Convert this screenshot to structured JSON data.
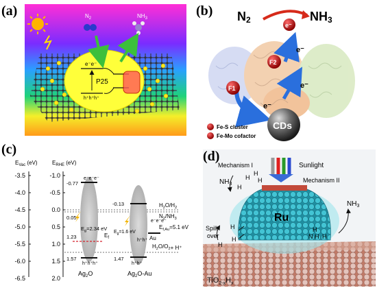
{
  "panel_labels": {
    "a": "(a)",
    "b": "(b)",
    "c": "(c)",
    "d": "(d)"
  },
  "panel_a": {
    "molecule_n2": "N",
    "molecule_n2_sub": "2",
    "molecule_nh3": "NH",
    "molecule_nh3_sub": "3",
    "catalyst": "P25",
    "vb_label": "h⁺h⁺h⁺",
    "cb_label": "e⁻e⁻"
  },
  "panel_b": {
    "reactant": "N",
    "reactant_sub": "2",
    "product": "NH",
    "product_sub": "3",
    "electron": "e⁻",
    "f1": "F1",
    "f2": "F2",
    "cds": "CDs",
    "legend": [
      "Fe-S cluster",
      "Fe-Mo cofactor"
    ]
  },
  "panel_c": {
    "axis_vac_label": "E",
    "axis_vac_sub": "Vac",
    "axis_vac_unit": " (eV)",
    "axis_rhe_label": "E",
    "axis_rhe_sub": "RHE",
    "axis_rhe_unit": " (eV)",
    "vac_ticks": [
      "-3.5",
      "-4.0",
      "-4.5",
      "-5.0",
      "-5.5",
      "-6.0",
      "-6.5"
    ],
    "rhe_ticks": [
      "-1.0",
      "-0.5",
      "0.0",
      "0.5",
      "1.0",
      "1.5",
      "2.0"
    ],
    "ag2o": {
      "name": "Ag",
      "name_sub": "2",
      "name_tail": "O",
      "cb": "-0.77",
      "vb": "1.57",
      "ef": "1.23",
      "ef_label": "E",
      "ef_sub": "f",
      "eg_label": "E",
      "eg_sub": "g",
      "eg_value": "=2.34 eV",
      "shift": "0.05"
    },
    "ag2o_au": {
      "name": "Ag",
      "name_sub": "2",
      "name_tail": "O-Au",
      "cb": "-0.13",
      "vb": "1.47",
      "eg_label": "E",
      "eg_sub": "g",
      "eg_value": "=1.6 eV",
      "au": "Au",
      "efau_label": "E",
      "efau_sub": "f,Au",
      "efau_value": "=5.1 eV"
    },
    "redox": {
      "h2": "H",
      "h2_sub1": "2",
      "h2_mid": "O/H",
      "h2_sub2": "2",
      "n2": "N",
      "n2_sub1": "2",
      "n2_mid": "/NH",
      "n2_sub2": "3",
      "o2": "H",
      "o2_sub1": "2",
      "o2_mid": "O/O",
      "o2_sub2": "2",
      "o2_tail": "+ H⁺"
    }
  },
  "panel_d": {
    "sunlight": "Sunlight",
    "mech1": "Mechanism I",
    "mech2": "Mechanism II",
    "nh3_left": "NH",
    "nh3_left_sub": "3",
    "nh3_right": "NH",
    "nh3_right_sub": "3",
    "ru": "Ru",
    "spill1": "Spill",
    "spill2": "over",
    "support": "TiO",
    "support_sub": "2-x",
    "support_tail": "H",
    "support_sub2": "x",
    "h": "H"
  },
  "colors": {
    "gradient": [
      "#ff2fd6",
      "#7a2cff",
      "#2aa0ff",
      "#1fd27a",
      "#f4ef2a",
      "#ff9a1a"
    ],
    "yellow_disk": "#ffff3a",
    "ru_cluster": "#3fbfd0",
    "band_gray": "#b8b8b8",
    "blue_arrow": "#2a6fdd",
    "red_dash": "#d4222a"
  }
}
